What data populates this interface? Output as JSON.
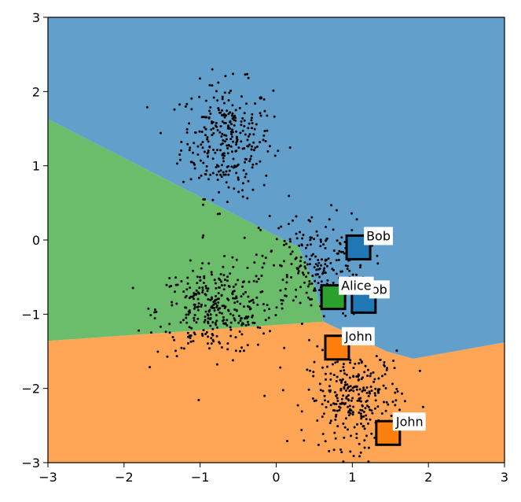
{
  "chart_data": {
    "type": "scatter",
    "title": "",
    "xlabel": "",
    "ylabel": "",
    "xlim": [
      -3,
      3
    ],
    "ylim": [
      -3,
      3
    ],
    "xticks": [
      -3,
      -2,
      -1,
      0,
      1,
      2,
      3
    ],
    "yticks": [
      -3,
      -2,
      -1,
      0,
      1,
      2,
      3
    ],
    "grid": false,
    "regions": [
      {
        "color": "#ffa556",
        "polygon": [
          [
            -3,
            -3
          ],
          [
            3,
            -3
          ],
          [
            3,
            -1.38
          ],
          [
            1.8,
            -1.6
          ],
          [
            1.45,
            -1.5
          ],
          [
            0.62,
            -1.1
          ],
          [
            -3,
            -1.36
          ]
        ]
      },
      {
        "color": "#6bbd6b",
        "polygon": [
          [
            -3,
            -1.36
          ],
          [
            0.62,
            -1.1
          ],
          [
            0.5,
            -0.6
          ],
          [
            0.3,
            -0.1
          ],
          [
            -3,
            1.63
          ]
        ]
      },
      {
        "color": "#629fca",
        "polygon": [
          [
            -3,
            1.63
          ],
          [
            0.3,
            -0.1
          ],
          [
            0.5,
            -0.6
          ],
          [
            0.62,
            -1.1
          ],
          [
            1.45,
            -1.5
          ],
          [
            1.8,
            -1.6
          ],
          [
            3,
            -1.38
          ],
          [
            3,
            3
          ],
          [
            -3,
            3
          ]
        ]
      }
    ],
    "clusters": [
      {
        "center": [
          -0.65,
          1.35
        ],
        "spread": [
          0.3,
          0.38
        ],
        "count": 310
      },
      {
        "center": [
          -0.8,
          -0.95
        ],
        "spread": [
          0.38,
          0.3
        ],
        "count": 330
      },
      {
        "center": [
          0.5,
          -0.35
        ],
        "spread": [
          0.35,
          0.35
        ],
        "count": 240
      },
      {
        "center": [
          1.05,
          -2.15
        ],
        "spread": [
          0.32,
          0.32
        ],
        "count": 300
      }
    ],
    "scatter_point_color": "#000000",
    "centroids": [
      {
        "label": "Bob",
        "x": 1.08,
        "y": -0.1,
        "color": "#1f77b4"
      },
      {
        "label": "ob",
        "x": 1.15,
        "y": -0.82,
        "color": "#1f77b4"
      },
      {
        "label": "Alice",
        "x": 0.75,
        "y": -0.77,
        "color": "#2ca02c"
      },
      {
        "label": "John",
        "x": 0.8,
        "y": -1.45,
        "color": "#ff7f0e"
      },
      {
        "label": "John",
        "x": 1.47,
        "y": -2.6,
        "color": "#ff7f0e"
      }
    ]
  }
}
